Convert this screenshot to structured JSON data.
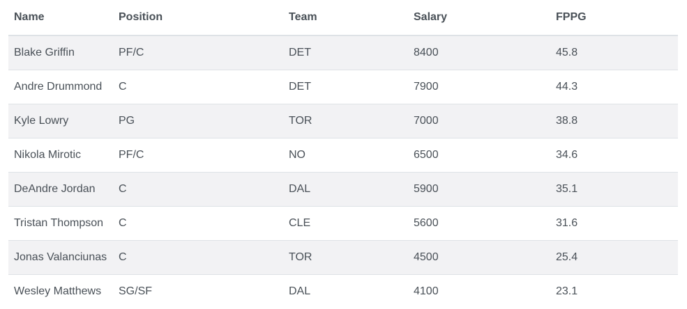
{
  "table": {
    "headers": {
      "name": "Name",
      "position": "Position",
      "team": "Team",
      "salary": "Salary",
      "fppg": "FPPG"
    },
    "rows": [
      {
        "name": "Blake Griffin",
        "position": "PF/C",
        "team": "DET",
        "salary": "8400",
        "fppg": "45.8"
      },
      {
        "name": "Andre Drummond",
        "position": "C",
        "team": "DET",
        "salary": "7900",
        "fppg": "44.3"
      },
      {
        "name": "Kyle Lowry",
        "position": "PG",
        "team": "TOR",
        "salary": "7000",
        "fppg": "38.8"
      },
      {
        "name": "Nikola Mirotic",
        "position": "PF/C",
        "team": "NO",
        "salary": "6500",
        "fppg": "34.6"
      },
      {
        "name": "DeAndre Jordan",
        "position": "C",
        "team": "DAL",
        "salary": "5900",
        "fppg": "35.1"
      },
      {
        "name": "Tristan Thompson",
        "position": "C",
        "team": "CLE",
        "salary": "5600",
        "fppg": "31.6"
      },
      {
        "name": "Jonas Valanciunas",
        "position": "C",
        "team": "TOR",
        "salary": "4500",
        "fppg": "25.4"
      },
      {
        "name": "Wesley Matthews",
        "position": "SG/SF",
        "team": "DAL",
        "salary": "4100",
        "fppg": "23.1"
      }
    ]
  }
}
